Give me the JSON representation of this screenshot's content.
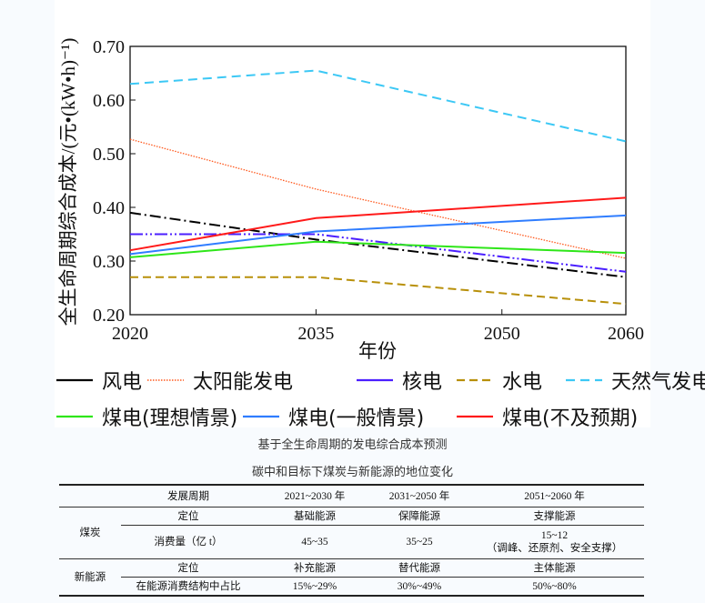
{
  "chart_data": {
    "type": "line",
    "title": "",
    "xlabel": "年份",
    "ylabel": "全生命周期综合成本/(元•(kW•h)⁻¹)",
    "x": [
      2020,
      2035,
      2060
    ],
    "xticks": [
      "2020",
      "2035",
      "2050",
      "2060"
    ],
    "xlim": [
      2020,
      2060
    ],
    "yticks": [
      "0.20",
      "0.30",
      "0.40",
      "0.50",
      "0.60",
      "0.70"
    ],
    "ylim": [
      0.2,
      0.7
    ],
    "grid": false,
    "legend_position": "bottom",
    "series": [
      {
        "name": "风电",
        "color": "#000000",
        "dash": "12 4 2 4",
        "values": [
          0.39,
          0.34,
          0.27
        ]
      },
      {
        "name": "太阳能发电",
        "color": "#ff5a1f",
        "dash": "1.5 1.5",
        "values": [
          0.527,
          0.434,
          0.305
        ]
      },
      {
        "name": "核电",
        "color": "#4b1fff",
        "dash": "14 3 2 3 2 3",
        "values": [
          0.35,
          0.35,
          0.28
        ]
      },
      {
        "name": "水电",
        "color": "#b8900a",
        "dash": "9 5",
        "values": [
          0.27,
          0.27,
          0.22
        ]
      },
      {
        "name": "天然气发电",
        "color": "#3cc8f5",
        "dash": "10 6",
        "values": [
          0.63,
          0.655,
          0.523
        ]
      },
      {
        "name": "煤电(理想情景)",
        "color": "#2ee619",
        "dash": "",
        "values": [
          0.307,
          0.336,
          0.315
        ]
      },
      {
        "name": "煤电(一般情景)",
        "color": "#2f7dff",
        "dash": "",
        "values": [
          0.313,
          0.355,
          0.385
        ]
      },
      {
        "name": "煤电(不及预期)",
        "color": "#ff1a1a",
        "dash": "",
        "values": [
          0.32,
          0.38,
          0.418
        ]
      }
    ]
  },
  "captions": {
    "chart": "基于全生命周期的发电综合成本预测",
    "table": "碳中和目标下煤炭与新能源的地位变化"
  },
  "table": {
    "header": [
      "发展周期",
      "2021~2030 年",
      "2031~2050 年",
      "2051~2060 年"
    ],
    "coal": {
      "label": "煤炭",
      "role_label": "定位",
      "roles": [
        "基础能源",
        "保障能源",
        "支撑能源"
      ],
      "consumption_label": "消费量（亿 t）",
      "consumption": [
        "45~35",
        "35~25",
        "15~12"
      ],
      "consumption_note": "（调峰、还原剂、安全支撑）"
    },
    "new_energy": {
      "label": "新能源",
      "role_label": "定位",
      "roles": [
        "补充能源",
        "替代能源",
        "主体能源"
      ],
      "share_label": "在能源消费结构中占比",
      "share": [
        "15%~29%",
        "30%~49%",
        "50%~80%"
      ]
    }
  }
}
